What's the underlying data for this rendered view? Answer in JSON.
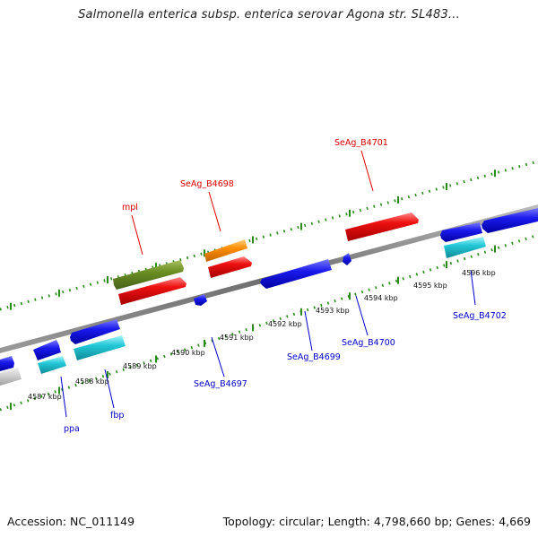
{
  "title": "Salmonella enterica subsp. enterica serovar Agona str. SL483...",
  "footer": {
    "accession": "Accession: NC_011149",
    "info": "Topology: circular; Length: 4,798,660 bp; Genes: 4,669"
  },
  "colors": {
    "backbone": "#8a8a8a",
    "tick": "#2a8a1a",
    "forward_label": "#dd0000",
    "reverse_label": "#0000cc",
    "red": "#ee1111",
    "olive": "#6b8e23",
    "orange": "#ff8c00",
    "blue": "#1a1aee",
    "cyan": "#22c8d8",
    "gray": "#cccccc"
  },
  "kbp_labels": [
    "4587 kbp",
    "4588 kbp",
    "4589 kbp",
    "4590 kbp",
    "4591 kbp",
    "4592 kbp",
    "4593 kbp",
    "4594 kbp",
    "4595 kbp",
    "4596 kbp"
  ],
  "gene_labels": {
    "forward": [
      "mpl",
      "SeAg_B4698",
      "SeAg_B4701"
    ],
    "reverse": [
      "ppa",
      "fbp",
      "SeAg_B4697",
      "SeAg_B4699",
      "SeAg_B4700",
      "SeAg_B4702"
    ]
  }
}
